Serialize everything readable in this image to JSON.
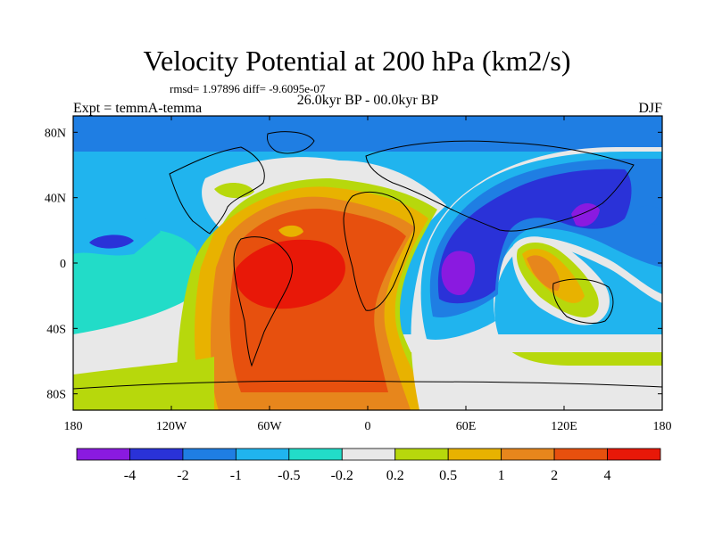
{
  "chart_data": {
    "type": "heatmap",
    "title": "Velocity Potential at 200 hPa (km2/s)",
    "stats": "rmsd= 1.97896 diff= -9.6095e-07",
    "subtitle": "26.0kyr BP - 00.0kyr BP",
    "left_label": "Expt = temmA-temma",
    "right_label": "DJF",
    "x_ticks": [
      {
        "lon": -180,
        "label": "180"
      },
      {
        "lon": -120,
        "label": "120W"
      },
      {
        "lon": -60,
        "label": "60W"
      },
      {
        "lon": 0,
        "label": "0"
      },
      {
        "lon": 60,
        "label": "60E"
      },
      {
        "lon": 120,
        "label": "120E"
      },
      {
        "lon": 180,
        "label": "180"
      }
    ],
    "y_ticks": [
      {
        "lat": 80,
        "label": "80N"
      },
      {
        "lat": 40,
        "label": "40N"
      },
      {
        "lat": 0,
        "label": "0"
      },
      {
        "lat": -40,
        "label": "40S"
      },
      {
        "lat": -80,
        "label": "80S"
      }
    ],
    "xlim": [
      -180,
      180
    ],
    "ylim": [
      -90,
      90
    ],
    "colorbar": {
      "levels": [
        "-4",
        "-2",
        "-1",
        "-0.5",
        "-0.2",
        "0.2",
        "0.5",
        "1",
        "2",
        "4"
      ],
      "colors": [
        "#8A1AE0",
        "#2A32D8",
        "#1F7EE3",
        "#20B4EE",
        "#22DCC8",
        "#E8E8E8",
        "#B7D80C",
        "#E8B200",
        "#E7861C",
        "#E7500E",
        "#E81808"
      ]
    }
  }
}
